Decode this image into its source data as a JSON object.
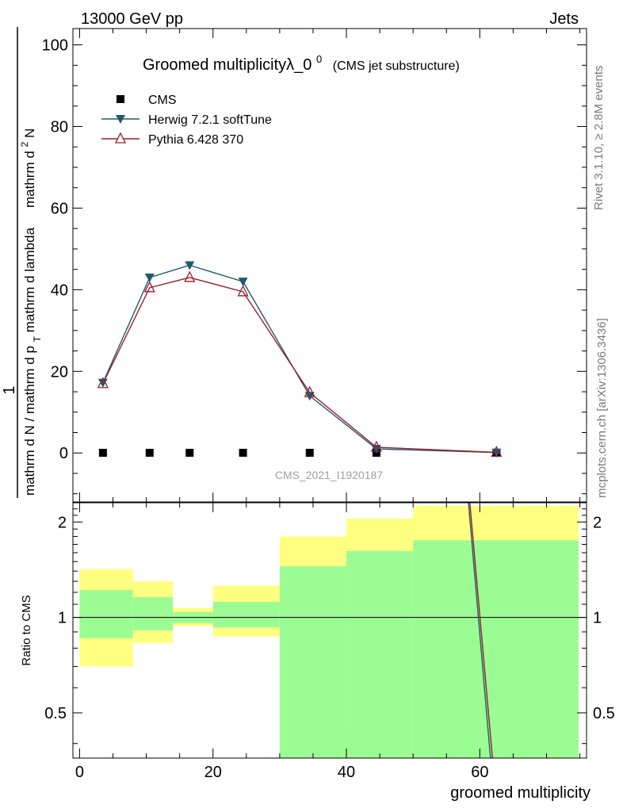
{
  "header": {
    "left": "13000 GeV pp",
    "right": "Jets"
  },
  "side_labels": {
    "rivet": "Rivet 3.1.10, ≥ 2.8M events",
    "mcplots": "mcplots.cern.ch [arXiv:1306.3436]"
  },
  "watermark": "CMS_2021_I1920187",
  "chart_data": {
    "type": "line",
    "title": "Groomed multiplicityλ_0",
    "title_sup": "0",
    "subtitle": "(CMS jet substructure)",
    "xlabel": "groomed multiplicity",
    "ylabel_numerator": "1",
    "ylabel_main": "mathrm d N / mathrm d p_T mathrm d lambda",
    "ylabel_alt": "mathrm d N / mathrm d p_T mathrm d lambda",
    "ylabel_fragments": [
      "mathrm d N / mathrm d p",
      "T",
      "mathrm d lambda",
      "mathrm d",
      "2",
      "N",
      "mathrm d p",
      "T",
      "mathrm d lambda"
    ],
    "ratio_ylabel": "Ratio to CMS",
    "xlim": [
      -1,
      76
    ],
    "ylim": [
      -12,
      104
    ],
    "yticks": [
      0,
      20,
      40,
      60,
      80,
      100
    ],
    "xticks": [
      0,
      20,
      40,
      60
    ],
    "ratio_ylim": [
      0.36,
      2.3
    ],
    "ratio_yticks": [
      0.5,
      1,
      2
    ],
    "ratio_ytick_labels": [
      "0.5",
      "1",
      "2"
    ],
    "legend": [
      {
        "name": "CMS",
        "color": "#000000",
        "marker": "square"
      },
      {
        "name": "Herwig 7.2.1 softTune",
        "color": "#1e5b6b",
        "marker": "triangle-down"
      },
      {
        "name": "Pythia 6.428 370",
        "color": "#9b1c2c",
        "marker": "triangle-up-open"
      }
    ],
    "x": [
      3.5,
      10.5,
      16.5,
      24.5,
      34.5,
      44.5,
      62.5
    ],
    "series": [
      {
        "name": "CMS",
        "values": [
          0.05,
          0.05,
          0.05,
          0.05,
          0.05,
          0.05,
          0.05
        ]
      },
      {
        "name": "Herwig 7.2.1 softTune",
        "values": [
          17.2,
          43.0,
          46.0,
          42.0,
          14.0,
          1.0,
          0.1
        ]
      },
      {
        "name": "Pythia 6.428 370",
        "values": [
          17.0,
          40.5,
          43.0,
          39.5,
          14.8,
          1.4,
          0.15
        ]
      }
    ],
    "ratio_bands": {
      "bins": [
        [
          0,
          8
        ],
        [
          8,
          14
        ],
        [
          14,
          20
        ],
        [
          20,
          30
        ],
        [
          30,
          40
        ],
        [
          40,
          50
        ],
        [
          50,
          76
        ]
      ],
      "outer": [
        [
          0.7,
          1.42
        ],
        [
          0.83,
          1.3
        ],
        [
          0.94,
          1.07
        ],
        [
          0.87,
          1.26
        ],
        [
          0.66,
          1.8
        ],
        [
          0.44,
          2.05
        ],
        [
          0.36,
          2.25
        ]
      ],
      "inner": [
        [
          0.86,
          1.22
        ],
        [
          0.91,
          1.16
        ],
        [
          0.96,
          1.04
        ],
        [
          0.93,
          1.12
        ],
        [
          0.36,
          1.45
        ],
        [
          0.36,
          1.62
        ],
        [
          0.36,
          1.75
        ]
      ]
    },
    "ratio_lines": [
      {
        "name": "Herwig 7.2.1 softTune",
        "points": [
          [
            58.3,
            2.3
          ],
          [
            61.6,
            0.36
          ]
        ]
      },
      {
        "name": "Pythia 6.428 370",
        "points": [
          [
            58.5,
            2.3
          ],
          [
            61.9,
            0.36
          ]
        ]
      }
    ]
  }
}
